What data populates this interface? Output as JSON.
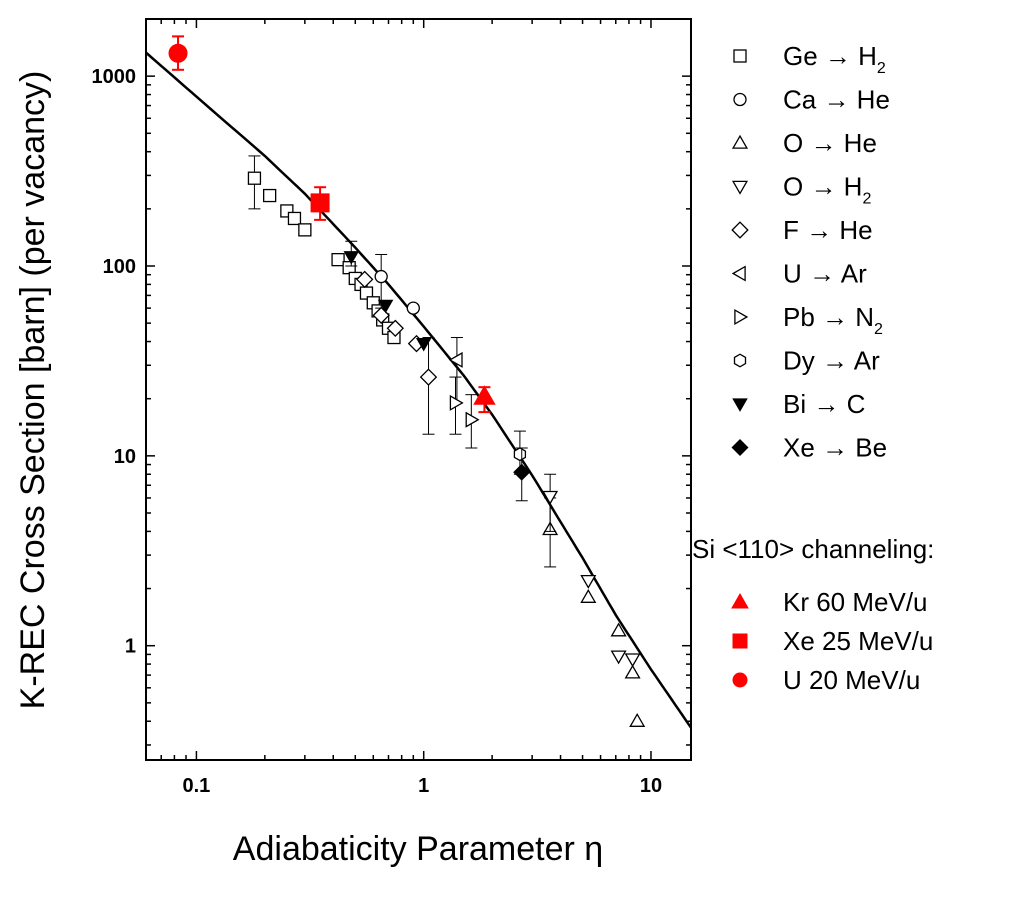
{
  "chart_data": {
    "type": "scatter",
    "title": "",
    "xlabel": "Adiabaticity Parameter η",
    "ylabel": "K-REC Cross Section [barn] (per vacancy)",
    "xscale": "log",
    "yscale": "log",
    "xlim": [
      0.06,
      15
    ],
    "ylim": [
      0.25,
      2000
    ],
    "xticks": [
      {
        "value": 0.1,
        "label": "0.1"
      },
      {
        "value": 1,
        "label": "1"
      },
      {
        "value": 10,
        "label": "10"
      }
    ],
    "yticks": [
      {
        "value": 1,
        "label": "1"
      },
      {
        "value": 10,
        "label": "10"
      },
      {
        "value": 100,
        "label": "100"
      },
      {
        "value": 1000,
        "label": "1000"
      }
    ],
    "legend_position": "right",
    "legend_group_title": "Si <110> channeling:",
    "curve": {
      "x": [
        0.06,
        0.1,
        0.2,
        0.3,
        0.5,
        0.7,
        1,
        1.5,
        2,
        3,
        5,
        7,
        10,
        15
      ],
      "y": [
        1330,
        780,
        380,
        240,
        125,
        80,
        48,
        26.5,
        16.5,
        7.9,
        2.9,
        1.45,
        0.75,
        0.37
      ]
    },
    "series": [
      {
        "name": "Ge",
        "target": "H",
        "sub": "2",
        "marker": "square",
        "filled": false,
        "color": "#000000",
        "points": [
          {
            "x": 0.18,
            "y": 290,
            "err": [
              200,
              380
            ]
          },
          {
            "x": 0.21,
            "y": 235
          },
          {
            "x": 0.25,
            "y": 195
          },
          {
            "x": 0.27,
            "y": 178
          },
          {
            "x": 0.3,
            "y": 155
          },
          {
            "x": 0.42,
            "y": 108
          },
          {
            "x": 0.47,
            "y": 98
          },
          {
            "x": 0.5,
            "y": 86
          },
          {
            "x": 0.53,
            "y": 80
          },
          {
            "x": 0.56,
            "y": 72
          },
          {
            "x": 0.6,
            "y": 64
          },
          {
            "x": 0.63,
            "y": 58
          },
          {
            "x": 0.66,
            "y": 52
          },
          {
            "x": 0.7,
            "y": 47
          },
          {
            "x": 0.74,
            "y": 42
          }
        ]
      },
      {
        "name": "Ca",
        "target": "He",
        "sub": "",
        "marker": "circle",
        "filled": false,
        "color": "#000000",
        "points": [
          {
            "x": 0.65,
            "y": 88,
            "err": [
              60,
              115
            ]
          },
          {
            "x": 0.9,
            "y": 60
          }
        ]
      },
      {
        "name": "O",
        "target": "He",
        "sub": "",
        "marker": "triangle-up",
        "filled": false,
        "color": "#000000",
        "points": [
          {
            "x": 3.6,
            "y": 4.1,
            "err": [
              2.6,
              6.0
            ]
          },
          {
            "x": 5.3,
            "y": 1.8
          },
          {
            "x": 7.2,
            "y": 1.2
          },
          {
            "x": 8.3,
            "y": 0.72
          },
          {
            "x": 8.7,
            "y": 0.4
          }
        ]
      },
      {
        "name": "O",
        "target": "H",
        "sub": "2",
        "marker": "triangle-down",
        "filled": false,
        "color": "#000000",
        "points": [
          {
            "x": 3.6,
            "y": 6.1,
            "err": [
              4.0,
              8.0
            ]
          },
          {
            "x": 5.3,
            "y": 2.2
          },
          {
            "x": 7.2,
            "y": 0.88
          },
          {
            "x": 8.3,
            "y": 0.85
          }
        ]
      },
      {
        "name": "F",
        "target": "He",
        "sub": "",
        "marker": "diamond",
        "filled": false,
        "color": "#000000",
        "points": [
          {
            "x": 0.55,
            "y": 85
          },
          {
            "x": 0.65,
            "y": 55
          },
          {
            "x": 0.75,
            "y": 47
          },
          {
            "x": 0.93,
            "y": 39
          },
          {
            "x": 1.05,
            "y": 26,
            "err": [
              13,
              42
            ]
          }
        ]
      },
      {
        "name": "U",
        "target": "Ar",
        "sub": "",
        "marker": "triangle-left",
        "filled": false,
        "color": "#000000",
        "points": [
          {
            "x": 1.4,
            "y": 32,
            "err": [
              19,
              42
            ]
          }
        ]
      },
      {
        "name": "Pb",
        "target": "N",
        "sub": "2",
        "marker": "triangle-right",
        "filled": false,
        "color": "#000000",
        "points": [
          {
            "x": 1.38,
            "y": 19,
            "err": [
              13,
              26
            ]
          },
          {
            "x": 1.62,
            "y": 15.5,
            "err": [
              11,
              21
            ]
          }
        ]
      },
      {
        "name": "Dy",
        "target": "Ar",
        "sub": "",
        "marker": "hexagon",
        "filled": false,
        "color": "#000000",
        "points": [
          {
            "x": 2.65,
            "y": 10.2,
            "err": [
              8,
              13.5
            ]
          }
        ]
      },
      {
        "name": "Bi",
        "target": "C",
        "sub": "",
        "marker": "triangle-down",
        "filled": true,
        "color": "#000000",
        "points": [
          {
            "x": 0.48,
            "y": 112,
            "err": [
              100,
              135
            ]
          },
          {
            "x": 0.68,
            "y": 62
          },
          {
            "x": 1.0,
            "y": 39
          }
        ]
      },
      {
        "name": "Xe",
        "target": "Be",
        "sub": "",
        "marker": "diamond",
        "filled": true,
        "color": "#000000",
        "points": [
          {
            "x": 2.7,
            "y": 8.2,
            "err": [
              5.8,
              11
            ]
          }
        ]
      },
      {
        "name": "Kr 60 MeV/u",
        "target": "",
        "sub": "",
        "group": "channeling",
        "marker": "triangle-up",
        "filled": true,
        "color": "#ff0000",
        "points": [
          {
            "x": 1.85,
            "y": 20.5,
            "err": [
              17,
              23
            ]
          }
        ]
      },
      {
        "name": "Xe 25 MeV/u",
        "target": "",
        "sub": "",
        "group": "channeling",
        "marker": "square",
        "filled": true,
        "color": "#ff0000",
        "points": [
          {
            "x": 0.35,
            "y": 215,
            "err": [
              175,
              260
            ]
          }
        ]
      },
      {
        "name": "U 20 MeV/u",
        "target": "",
        "sub": "",
        "group": "channeling",
        "marker": "circle",
        "filled": true,
        "color": "#ff0000",
        "points": [
          {
            "x": 0.083,
            "y": 1320,
            "err": [
              1080,
              1620
            ]
          }
        ]
      }
    ]
  }
}
